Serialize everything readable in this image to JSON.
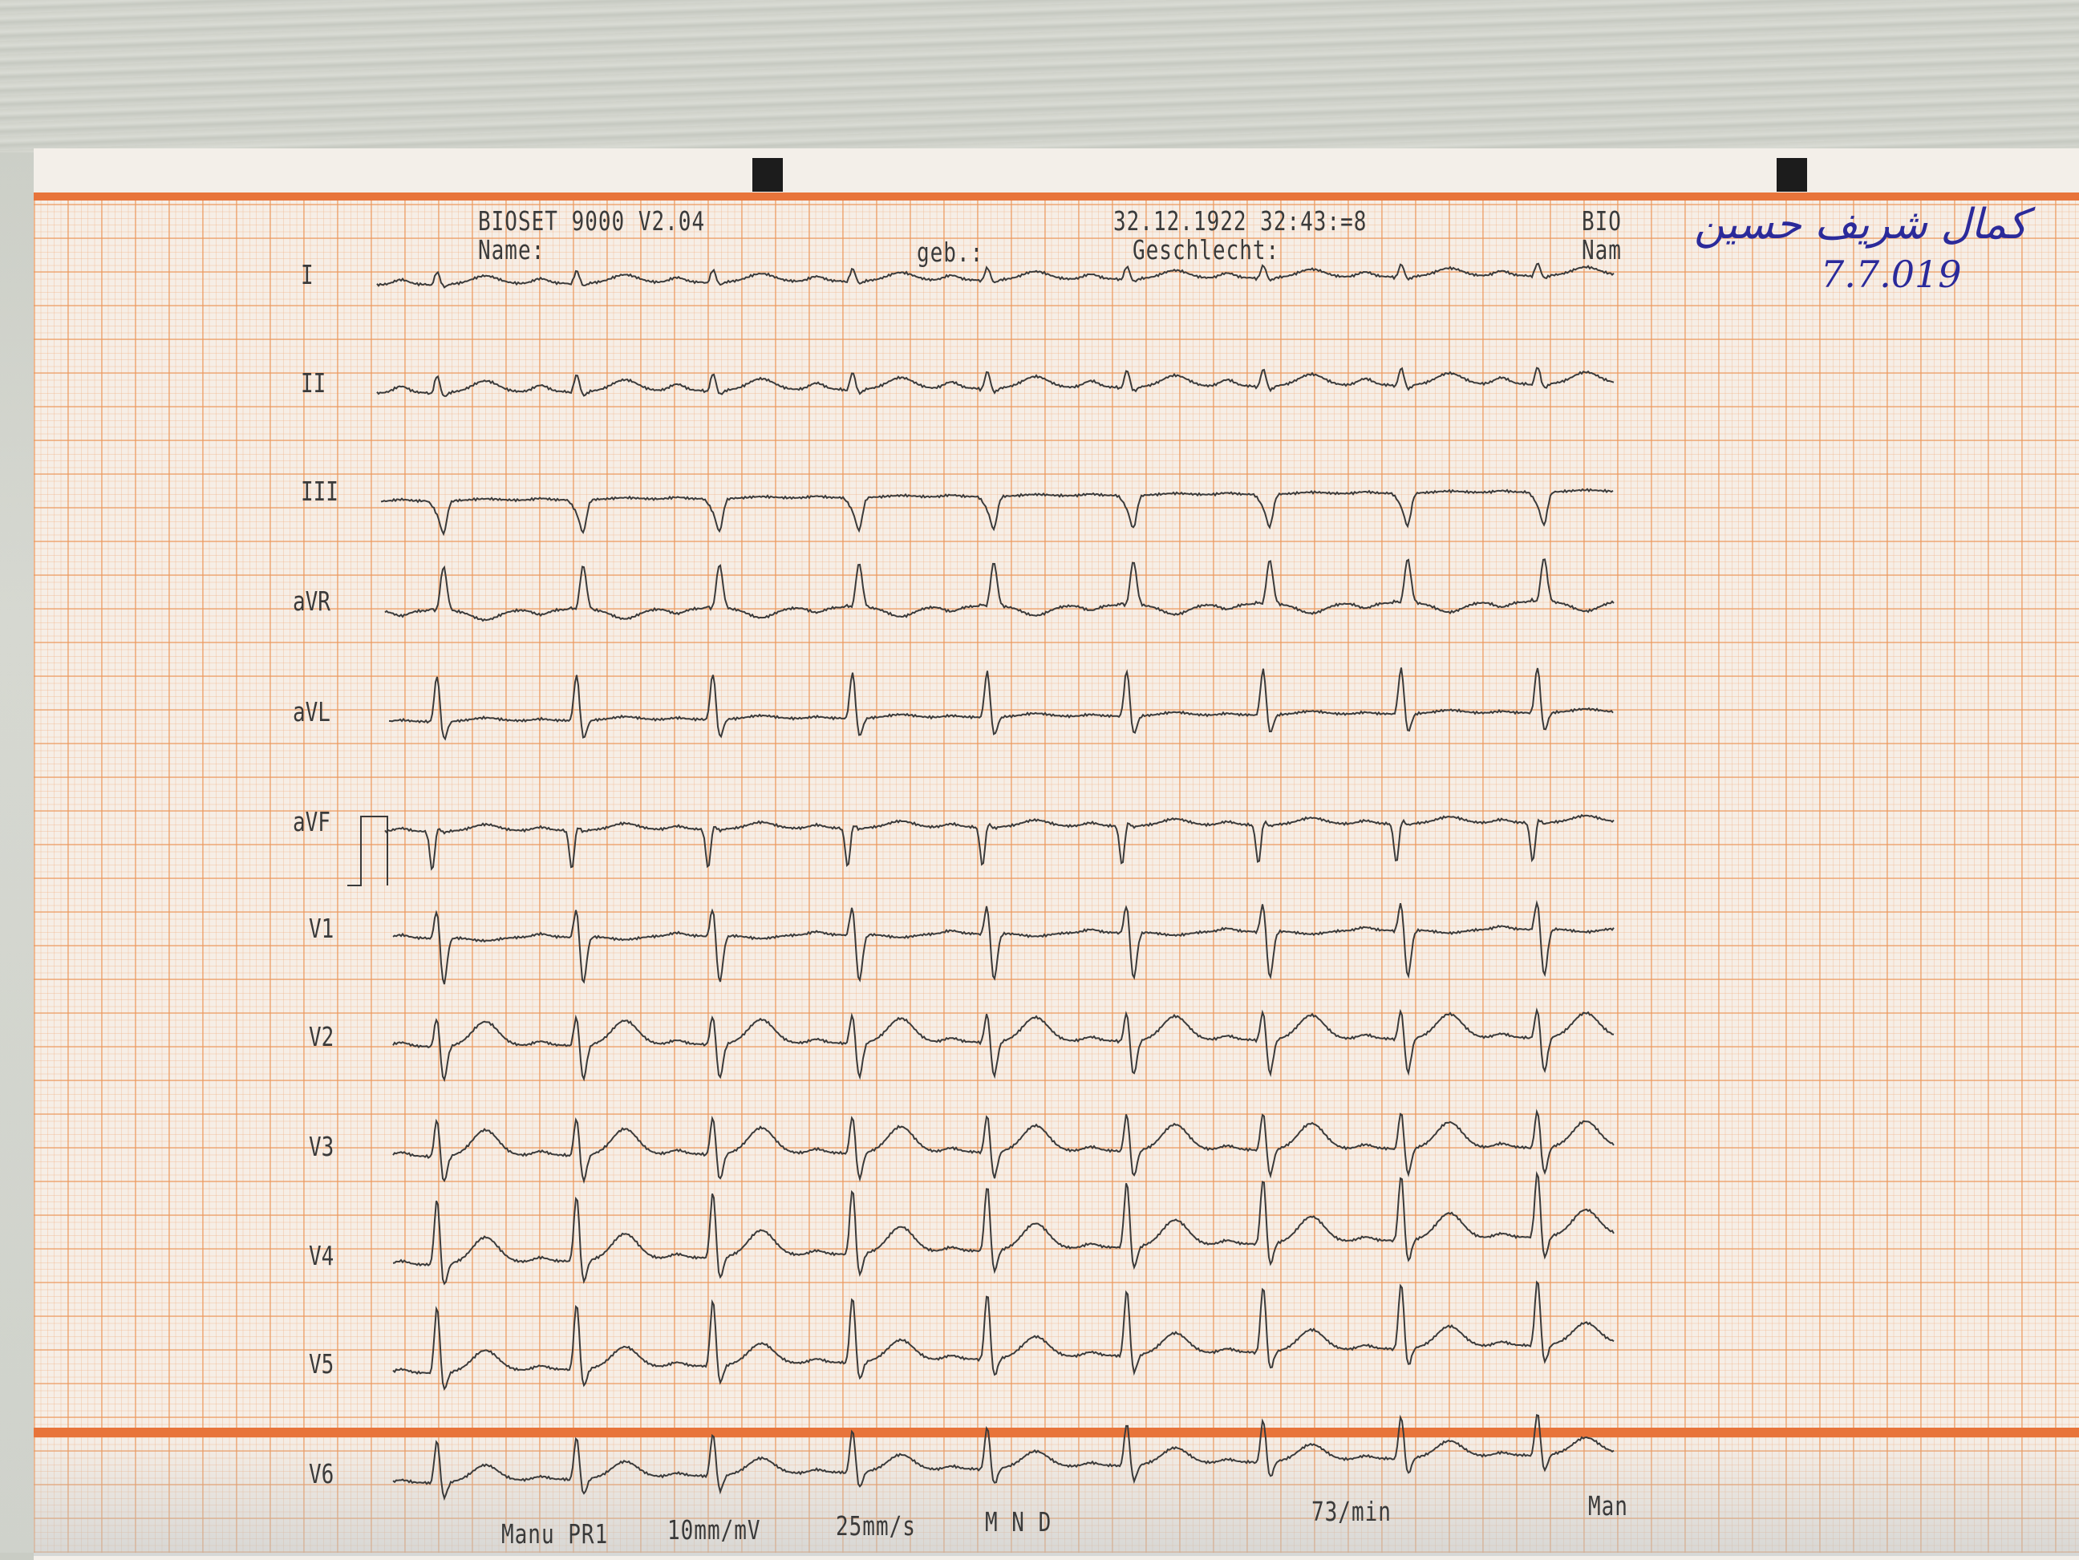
{
  "header": {
    "device": "BIOSET 9000 V2.04",
    "datetime": "32.12.1922 32:43:=8",
    "corner_top": "BIO",
    "name_label": "Name:",
    "birth_label": "geb.:",
    "sex_label": "Geschlecht:",
    "corner_bottom": "Nam"
  },
  "handwriting": {
    "name": "كمال شريف حسين",
    "date": "7.7.019"
  },
  "leads": [
    "I",
    "II",
    "III",
    "aVR",
    "aVL",
    "aVF",
    "V1",
    "V2",
    "V3",
    "V4",
    "V5",
    "V6"
  ],
  "footer": {
    "mode": "Manu PR1",
    "gain": "10mm/mV",
    "speed": "25mm/s",
    "filters": "M  N  D",
    "heart_rate": "73/min",
    "corner": "Man"
  },
  "colors": {
    "grid_major": "#eb965a",
    "grid_minor": "#f0af82",
    "border_line": "#e8743a",
    "trace": "#3a3a3a",
    "ink": "#2b2a9a"
  }
}
